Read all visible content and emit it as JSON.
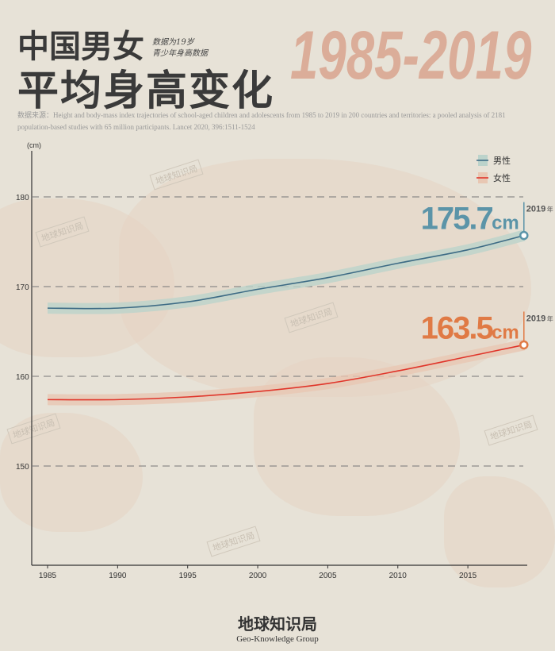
{
  "title_line1": "中国男女",
  "title_line2": "平均身高变化",
  "subtitle_line1": "数据为19岁",
  "subtitle_line2": "青少年身高数据",
  "year_range": "1985-2019",
  "source": "数据来源：Height and body-mass index trajectories of school-aged children and adolescents from 1985 to 2019 in 200 countries and territories: a pooled analysis of 2181 population-based studies with 65 million participants. Lancet 2020, 396:1511-1524",
  "watermark": "地球知识局",
  "footer": {
    "logo": "地球知识局",
    "name": "Geo-Knowledge Group"
  },
  "chart_data": {
    "type": "line",
    "ylabel": "(cm)",
    "ylim": [
      140,
      185
    ],
    "xlim": [
      1984,
      2020
    ],
    "x_ticks": [
      1985,
      1990,
      1995,
      2000,
      2005,
      2010,
      2015
    ],
    "y_ticks": [
      150,
      160,
      170,
      180
    ],
    "grid": "dashed horizontal",
    "legend_position": "top-right",
    "x": [
      1985,
      1990,
      1995,
      2000,
      2005,
      2010,
      2015,
      2019
    ],
    "series": [
      {
        "name": "男性",
        "color": "#3d6b85",
        "band": "#bcd3cb",
        "values": [
          167.6,
          167.6,
          168.3,
          169.7,
          171.0,
          172.6,
          174.1,
          175.7
        ],
        "end_label": "175.7",
        "end_unit": "cm",
        "end_year": "2019",
        "end_year_suffix": "年",
        "label_color": "#5b94a8"
      },
      {
        "name": "女性",
        "color": "#e0352a",
        "band": "#e8c7b3",
        "values": [
          157.4,
          157.4,
          157.7,
          158.3,
          159.2,
          160.6,
          162.2,
          163.5
        ],
        "end_label": "163.5",
        "end_unit": "cm",
        "end_year": "2019",
        "end_year_suffix": "年",
        "label_color": "#e07a45"
      }
    ]
  }
}
